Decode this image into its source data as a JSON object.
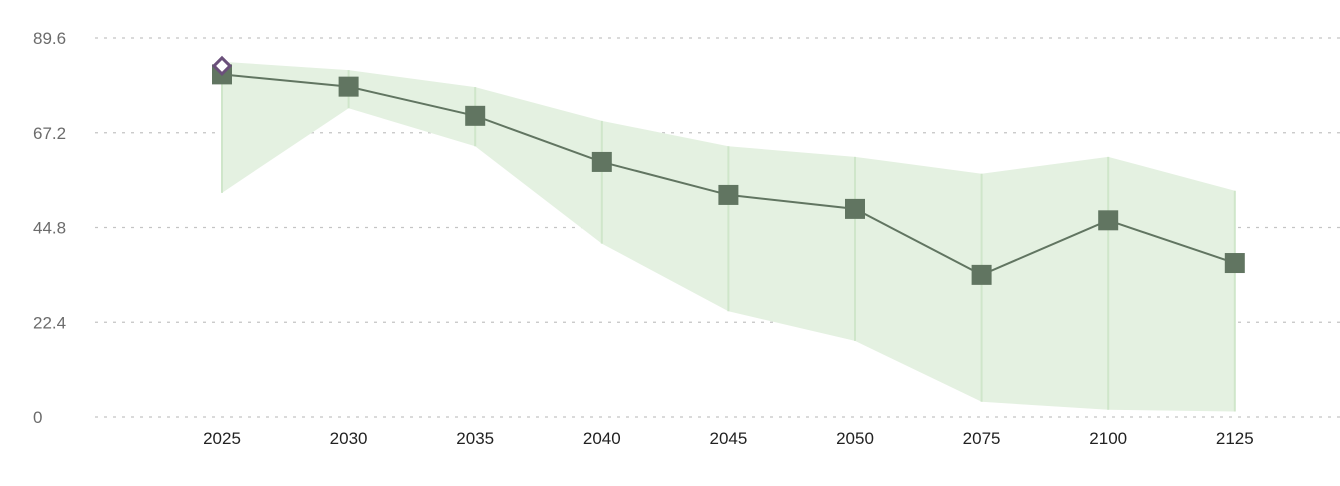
{
  "chart_data": {
    "type": "line",
    "categories": [
      "2025",
      "2030",
      "2035",
      "2040",
      "2045",
      "2050",
      "2075",
      "2100",
      "2125"
    ],
    "series": [
      {
        "values": [
          81.0,
          78.1,
          71.2,
          60.3,
          52.5,
          49.2,
          33.6,
          46.5,
          36.4
        ],
        "band_lower": [
          53.0,
          73.0,
          64.0,
          41.0,
          25.0,
          18.0,
          3.6,
          1.7,
          1.3
        ],
        "band_upper": [
          84.0,
          82.0,
          78.0,
          70.0,
          64.0,
          61.5,
          57.5,
          61.5,
          53.5
        ],
        "color": "#617561",
        "marker": "square"
      }
    ],
    "highlight_point": {
      "category": "2025",
      "value": 83.0,
      "marker": "diamond",
      "color": "#6a4f7a"
    },
    "band_color": "#e4f1e1",
    "band_line_color": "#cfe6ca",
    "yticks": [
      "0",
      "22.4",
      "44.8",
      "67.2",
      "89.6"
    ],
    "ylim": [
      0,
      89.6
    ],
    "grid": "horizontal-dotted",
    "title": "",
    "xlabel": "",
    "ylabel": ""
  }
}
